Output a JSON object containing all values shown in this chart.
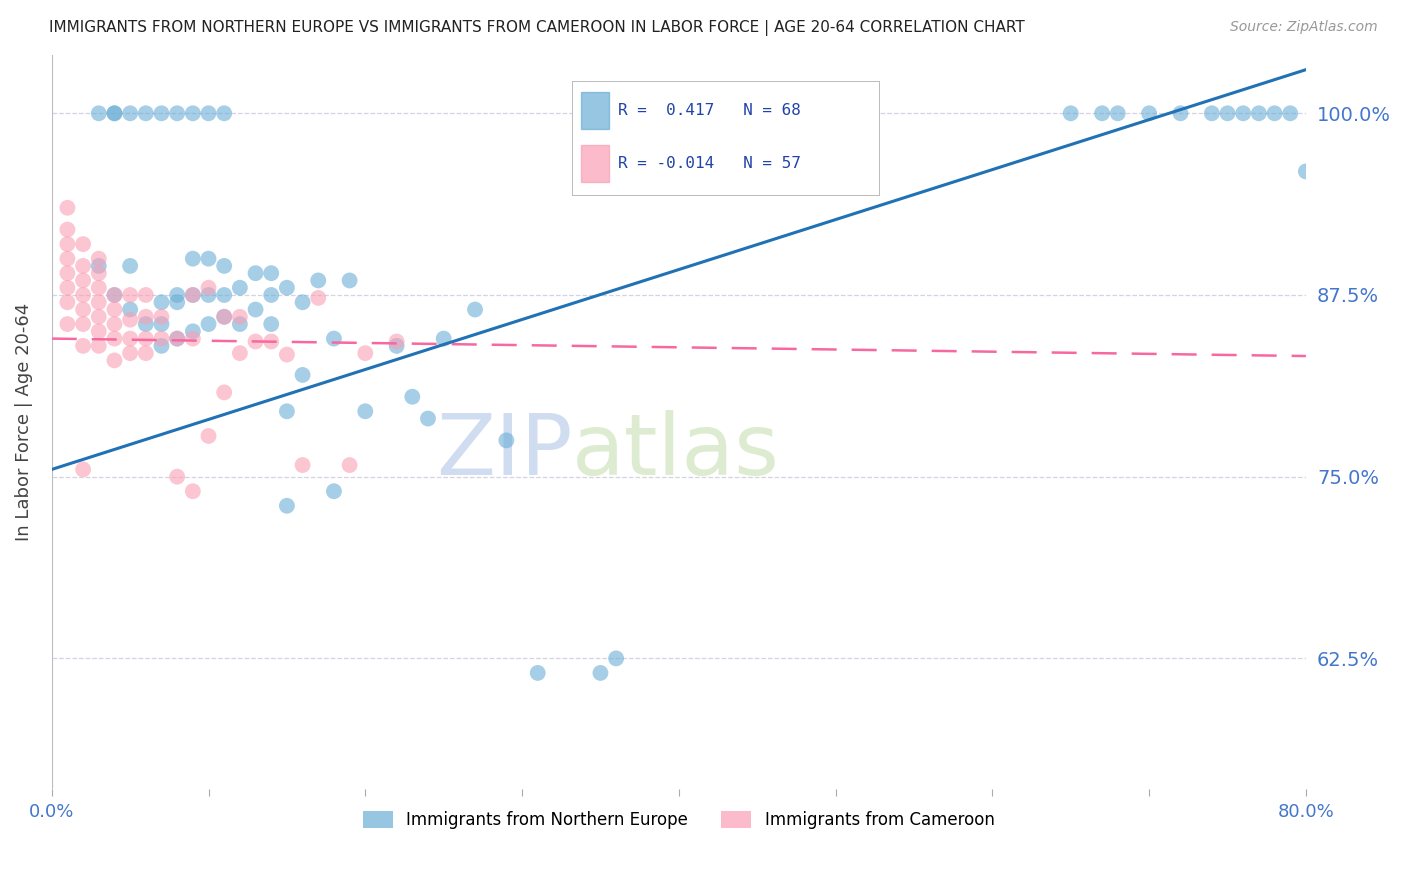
{
  "title": "IMMIGRANTS FROM NORTHERN EUROPE VS IMMIGRANTS FROM CAMEROON IN LABOR FORCE | AGE 20-64 CORRELATION CHART",
  "source": "Source: ZipAtlas.com",
  "ylabel": "In Labor Force | Age 20-64",
  "y_tick_labels": [
    "62.5%",
    "75.0%",
    "87.5%",
    "100.0%"
  ],
  "y_tick_values": [
    0.625,
    0.75,
    0.875,
    1.0
  ],
  "xlim": [
    0.0,
    0.8
  ],
  "ylim": [
    0.535,
    1.04
  ],
  "blue_R": 0.417,
  "blue_N": 68,
  "pink_R": -0.014,
  "pink_N": 57,
  "blue_color": "#6baed6",
  "pink_color": "#fa9fb5",
  "blue_line_color": "#2171b5",
  "pink_line_color": "#f768a1",
  "grid_color": "#c8c8dc",
  "right_label_color": "#4477cc",
  "title_color": "#222222",
  "watermark_zip": "ZIP",
  "watermark_atlas": "atlas",
  "legend_label_blue": "Immigrants from Northern Europe",
  "legend_label_pink": "Immigrants from Cameroon",
  "blue_line_x0": 0.0,
  "blue_line_y0": 0.755,
  "blue_line_x1": 0.8,
  "blue_line_y1": 1.03,
  "pink_line_x0": 0.0,
  "pink_line_y0": 0.845,
  "pink_line_x1": 0.8,
  "pink_line_y1": 0.833,
  "blue_x": [
    0.03,
    0.04,
    0.05,
    0.05,
    0.06,
    0.07,
    0.07,
    0.07,
    0.08,
    0.08,
    0.08,
    0.09,
    0.09,
    0.09,
    0.1,
    0.1,
    0.1,
    0.11,
    0.11,
    0.11,
    0.12,
    0.12,
    0.13,
    0.13,
    0.14,
    0.14,
    0.14,
    0.15,
    0.15,
    0.15,
    0.16,
    0.16,
    0.17,
    0.18,
    0.18,
    0.19,
    0.2,
    0.22,
    0.23,
    0.24,
    0.25,
    0.27,
    0.29,
    0.31,
    0.35,
    0.36,
    0.03,
    0.04,
    0.04,
    0.05,
    0.06,
    0.07,
    0.08,
    0.09,
    0.1,
    0.11,
    0.65,
    0.67,
    0.68,
    0.7,
    0.72,
    0.74,
    0.75,
    0.76,
    0.77,
    0.78,
    0.79,
    0.8
  ],
  "blue_y": [
    0.895,
    0.875,
    0.865,
    0.895,
    0.855,
    0.87,
    0.855,
    0.84,
    0.845,
    0.87,
    0.875,
    0.85,
    0.875,
    0.9,
    0.855,
    0.875,
    0.9,
    0.86,
    0.875,
    0.895,
    0.855,
    0.88,
    0.865,
    0.89,
    0.855,
    0.875,
    0.89,
    0.73,
    0.795,
    0.88,
    0.82,
    0.87,
    0.885,
    0.74,
    0.845,
    0.885,
    0.795,
    0.84,
    0.805,
    0.79,
    0.845,
    0.865,
    0.775,
    0.615,
    0.615,
    0.625,
    1.0,
    1.0,
    1.0,
    1.0,
    1.0,
    1.0,
    1.0,
    1.0,
    1.0,
    1.0,
    1.0,
    1.0,
    1.0,
    1.0,
    1.0,
    1.0,
    1.0,
    1.0,
    1.0,
    1.0,
    1.0,
    0.96
  ],
  "pink_x": [
    0.01,
    0.01,
    0.01,
    0.01,
    0.01,
    0.01,
    0.01,
    0.01,
    0.02,
    0.02,
    0.02,
    0.02,
    0.02,
    0.02,
    0.02,
    0.02,
    0.03,
    0.03,
    0.03,
    0.03,
    0.03,
    0.03,
    0.03,
    0.04,
    0.04,
    0.04,
    0.04,
    0.04,
    0.05,
    0.05,
    0.05,
    0.05,
    0.06,
    0.06,
    0.06,
    0.06,
    0.07,
    0.07,
    0.08,
    0.08,
    0.09,
    0.09,
    0.09,
    0.1,
    0.1,
    0.11,
    0.11,
    0.12,
    0.12,
    0.13,
    0.14,
    0.15,
    0.16,
    0.17,
    0.19,
    0.2,
    0.22
  ],
  "pink_y": [
    0.855,
    0.87,
    0.88,
    0.89,
    0.9,
    0.91,
    0.92,
    0.935,
    0.755,
    0.84,
    0.855,
    0.865,
    0.875,
    0.885,
    0.895,
    0.91,
    0.84,
    0.85,
    0.86,
    0.87,
    0.88,
    0.89,
    0.9,
    0.83,
    0.845,
    0.855,
    0.865,
    0.875,
    0.835,
    0.845,
    0.858,
    0.875,
    0.835,
    0.845,
    0.86,
    0.875,
    0.845,
    0.86,
    0.75,
    0.845,
    0.74,
    0.845,
    0.875,
    0.778,
    0.88,
    0.808,
    0.86,
    0.835,
    0.86,
    0.843,
    0.843,
    0.834,
    0.758,
    0.873,
    0.758,
    0.835,
    0.843
  ]
}
